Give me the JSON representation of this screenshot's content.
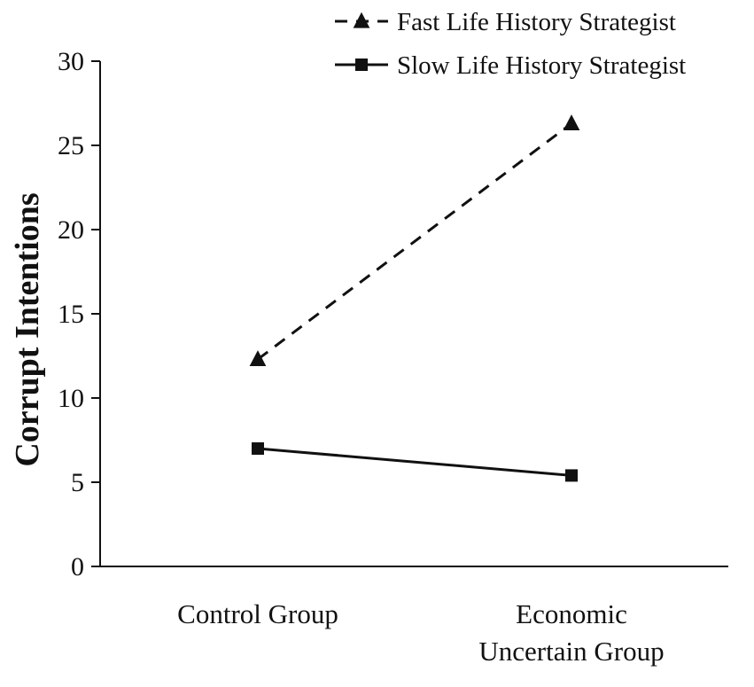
{
  "chart_data": {
    "type": "line",
    "title": "",
    "xlabel": "",
    "ylabel": "Corrupt Intentions",
    "categories": [
      [
        "Control Group"
      ],
      [
        "Economic",
        "Uncertain Group"
      ]
    ],
    "ylim": [
      0,
      30
    ],
    "yticks": [
      0,
      5,
      10,
      15,
      20,
      25,
      30
    ],
    "grid": false,
    "legend_position": "top-right",
    "series": [
      {
        "name": "Fast Life History Strategist",
        "values": [
          12.3,
          26.3
        ],
        "line_style": "dashed",
        "marker": "triangle",
        "color": "#111111"
      },
      {
        "name": "Slow Life History Strategist",
        "values": [
          7.0,
          5.4
        ],
        "line_style": "solid",
        "marker": "square",
        "color": "#111111"
      }
    ]
  }
}
